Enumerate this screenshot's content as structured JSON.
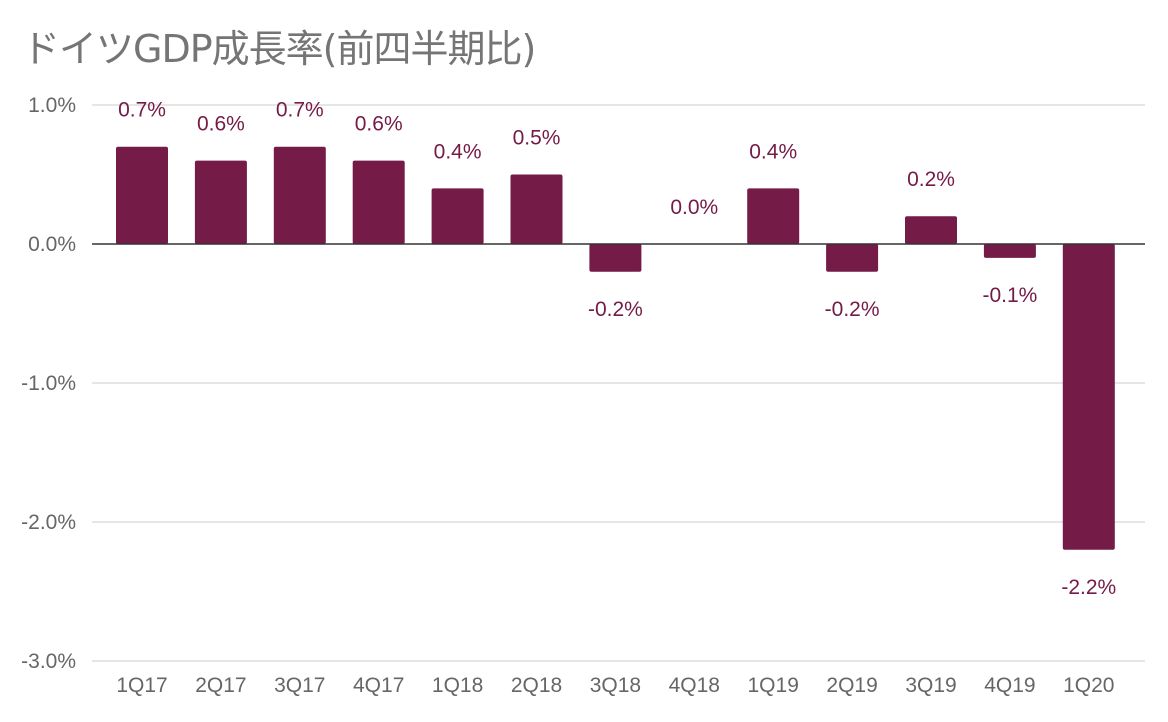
{
  "chart_data": {
    "type": "bar",
    "title": "ドイツGDP成長率(前四半期比)",
    "categories": [
      "1Q17",
      "2Q17",
      "3Q17",
      "4Q17",
      "1Q18",
      "2Q18",
      "3Q18",
      "4Q18",
      "1Q19",
      "2Q19",
      "3Q19",
      "4Q19",
      "1Q20"
    ],
    "series": [
      {
        "values": [
          0.7,
          0.6,
          0.7,
          0.6,
          0.4,
          0.5,
          -0.2,
          0.0,
          0.4,
          -0.2,
          0.2,
          -0.1,
          -2.2
        ],
        "data_labels": [
          "0.7%",
          "0.6%",
          "0.7%",
          "0.6%",
          "0.4%",
          "0.5%",
          "-0.2%",
          "0.0%",
          "0.4%",
          "-0.2%",
          "0.2%",
          "-0.1%",
          "-2.2%"
        ]
      }
    ],
    "ylim": [
      -3.0,
      1.0
    ],
    "yticks": [
      1.0,
      0.0,
      -1.0,
      -2.0,
      -3.0
    ],
    "ytick_labels": [
      "1.0%",
      "0.0%",
      "-1.0%",
      "-2.0%",
      "-3.0%"
    ],
    "xlabel": "",
    "ylabel": "",
    "grid": true,
    "legend": "none",
    "colors": {
      "bar": "#741b47",
      "data_label": "#741b47",
      "gridline": "#cccccc",
      "zero_line": "#333333",
      "tick_label": "#666666",
      "title": "#757575"
    }
  }
}
